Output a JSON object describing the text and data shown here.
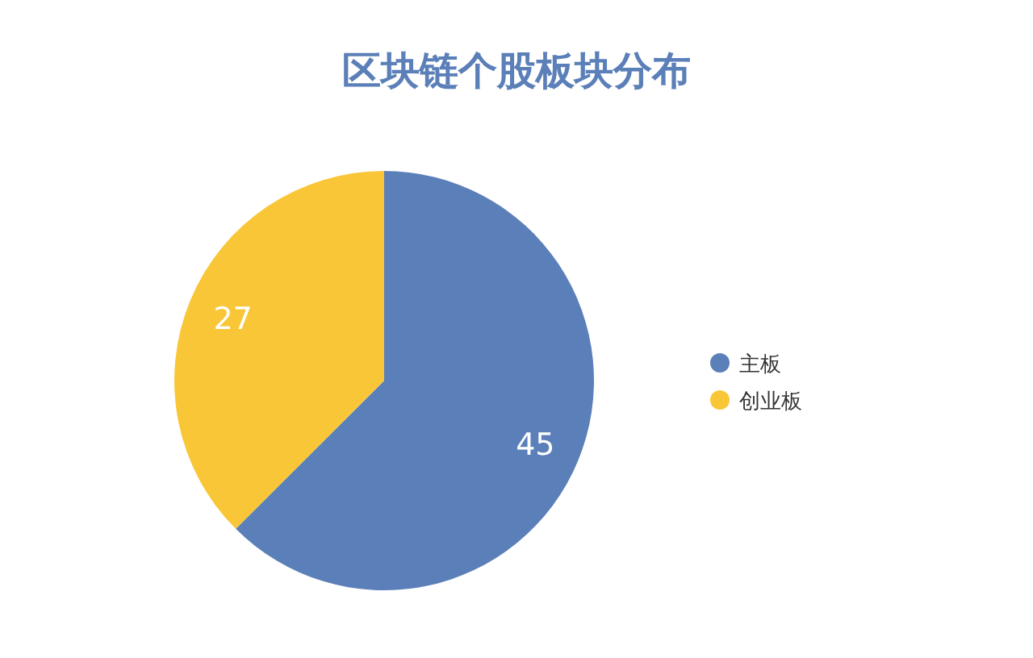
{
  "chart_data": {
    "type": "pie",
    "title": "区块链个股板块分布",
    "categories": [
      "主板",
      "创业板"
    ],
    "values": [
      45,
      27
    ],
    "colors": [
      "#5b7fb8",
      "#f9c637"
    ],
    "data_labels": true,
    "legend": "right"
  }
}
